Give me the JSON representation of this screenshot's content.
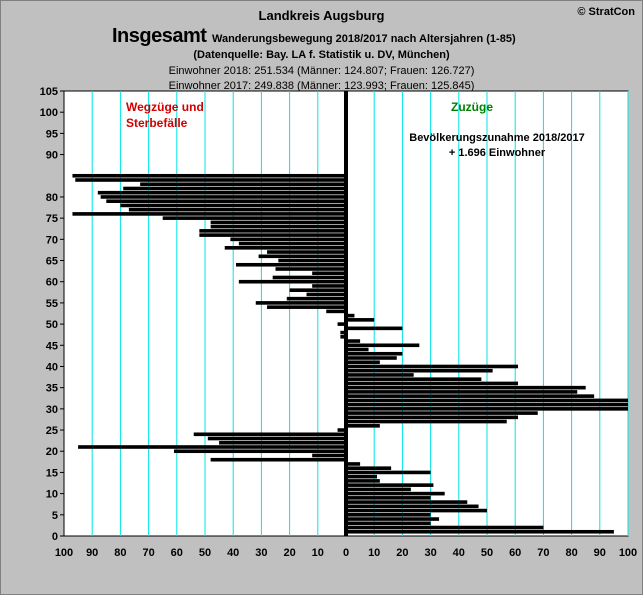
{
  "header": {
    "region": "Landkreis Augsburg",
    "copyright": "© StratCon",
    "big_title": "Insgesamt",
    "title": "Wanderungsbewegung 2018/2017 nach Altersjahren (1-85)",
    "source": "(Datenquelle: Bay. LA f. Statistik u. DV, München)",
    "pop_2018": "Einwohner 2018: 251.534 (Männer: 124.807; Frauen: 126.727)",
    "pop_2017": "Einwohner 2017: 249.838 (Männer: 123.993; Frauen: 125.845)"
  },
  "colors": {
    "background": "#c0c0c0",
    "plot": "#ffffff",
    "grid": "#00e5e5",
    "bar": "#000000",
    "label_left": "#d00000",
    "label_right": "#008000"
  },
  "chart_data": {
    "type": "bar",
    "orientation": "horizontal",
    "left_label": [
      "Wegzüge und",
      "Sterbefälle"
    ],
    "right_label": "Zuzüge",
    "annotation": [
      "Bevölkerungszunahme 2018/2017",
      "+ 1.696 Einwohner"
    ],
    "y_ticks": [
      0,
      5,
      10,
      15,
      20,
      25,
      30,
      35,
      40,
      45,
      50,
      55,
      60,
      65,
      70,
      75,
      80,
      90,
      95,
      100,
      105
    ],
    "x_ticks": [
      100,
      90,
      80,
      70,
      60,
      50,
      40,
      30,
      20,
      10,
      0,
      10,
      20,
      30,
      40,
      50,
      60,
      70,
      80,
      90,
      100
    ],
    "xlim": [
      -100,
      100
    ],
    "ylim": [
      0,
      105
    ],
    "grid": true,
    "ages": [
      1,
      2,
      3,
      4,
      5,
      6,
      7,
      8,
      9,
      10,
      11,
      12,
      13,
      14,
      15,
      16,
      17,
      18,
      19,
      20,
      21,
      22,
      23,
      24,
      25,
      26,
      27,
      28,
      29,
      30,
      31,
      32,
      33,
      34,
      35,
      36,
      37,
      38,
      39,
      40,
      41,
      42,
      43,
      44,
      45,
      46,
      47,
      48,
      49,
      50,
      51,
      52,
      53,
      54,
      55,
      56,
      57,
      58,
      59,
      60,
      61,
      62,
      63,
      64,
      65,
      66,
      67,
      68,
      69,
      70,
      71,
      72,
      73,
      74,
      75,
      76,
      77,
      78,
      79,
      80,
      81,
      82,
      83,
      84,
      85
    ],
    "values": [
      95,
      70,
      30,
      33,
      30,
      50,
      47,
      43,
      30,
      35,
      23,
      31,
      12,
      11,
      30,
      16,
      5,
      -48,
      -12,
      -61,
      -95,
      -45,
      -49,
      -54,
      -3,
      12,
      57,
      61,
      68,
      100,
      100,
      100,
      88,
      82,
      85,
      61,
      48,
      24,
      52,
      61,
      12,
      18,
      20,
      8,
      26,
      5,
      -2,
      -2,
      20,
      -3,
      10,
      3,
      -7,
      -28,
      -32,
      -21,
      -14,
      -20,
      -12,
      -38,
      -26,
      -12,
      -25,
      -39,
      -24,
      -31,
      -28,
      -43,
      -38,
      -41,
      -52,
      -52,
      -48,
      -48,
      -65,
      -97,
      -77,
      -80,
      -85,
      -87,
      -88,
      -79,
      -73,
      -96,
      -97
    ]
  }
}
